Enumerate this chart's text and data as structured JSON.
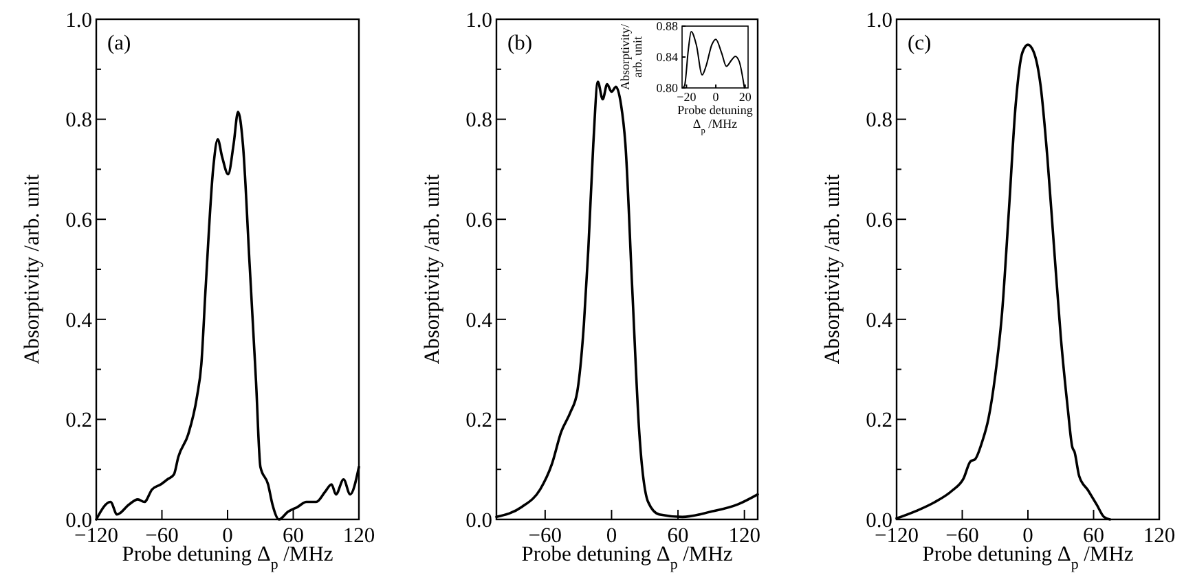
{
  "chart_data": [
    {
      "type": "line",
      "xlabel": "Probe detuning Δ$_{p}$ /MHz",
      "ylabel": "Absorptivity /arb. unit",
      "annotations": [
        "(a)"
      ],
      "xlim": [
        -120,
        120
      ],
      "ylim": [
        0,
        1
      ],
      "xticks": [
        -120,
        -60,
        0,
        60,
        120
      ],
      "yticks": [
        {
          "value": 0,
          "label": "0.0"
        },
        {
          "value": 0.1,
          "label": null
        },
        0.2,
        {
          "value": 0.3,
          "label": null
        },
        0.4,
        {
          "value": 0.5,
          "label": null
        },
        0.6,
        {
          "value": 0.7,
          "label": null
        },
        0.8,
        {
          "value": 0.9,
          "label": null
        },
        {
          "value": 1,
          "label": "1.0"
        }
      ],
      "x": [
        -120,
        -107,
        -101,
        -90,
        -82,
        -76,
        -69,
        -61,
        -55,
        -49,
        -45,
        -36,
        -28,
        -24,
        -20,
        -13,
        -9,
        -5,
        0.5,
        5.5,
        9.6,
        14,
        20,
        26,
        30,
        37,
        41,
        47,
        55,
        64,
        72,
        81,
        89,
        95,
        99,
        106,
        112,
        120
      ],
      "series": [
        {
          "color": "#000000",
          "values": [
            0.0,
            0.035,
            0.01,
            0.03,
            0.04,
            0.035,
            0.06,
            0.07,
            0.08,
            0.09,
            0.125,
            0.17,
            0.245,
            0.31,
            0.465,
            0.705,
            0.76,
            0.725,
            0.69,
            0.75,
            0.815,
            0.75,
            0.515,
            0.275,
            0.105,
            0.07,
            0.03,
            0.0,
            0.015,
            0.025,
            0.035,
            0.035,
            0.055,
            0.07,
            0.05,
            0.08,
            0.05,
            0.105
          ]
        }
      ]
    },
    {
      "type": "line",
      "xlabel": "Probe detuning Δ$_{p}$ /MHz",
      "ylabel": "Absorptivity /arb. unit",
      "annotations": [
        "(b)"
      ],
      "xlim": [
        -104,
        132
      ],
      "ylim": [
        0,
        1
      ],
      "xticks": [
        -60,
        0,
        60,
        120
      ],
      "yticks": [
        {
          "value": 0,
          "label": "0.0"
        },
        {
          "value": 0.1,
          "label": null
        },
        0.2,
        {
          "value": 0.3,
          "label": null
        },
        0.4,
        {
          "value": 0.5,
          "label": null
        },
        0.6,
        {
          "value": 0.7,
          "label": null
        },
        0.8,
        {
          "value": 0.9,
          "label": null
        },
        {
          "value": 1,
          "label": "1.0"
        }
      ],
      "x": [
        -104,
        -81,
        -64.5,
        -54,
        -45.5,
        -37,
        -31,
        -25,
        -21,
        -16.5,
        -12.4,
        -8,
        -4,
        0,
        4,
        8.5,
        12.5,
        18.6,
        25,
        33,
        43,
        64,
        89,
        114,
        132
      ],
      "series": [
        {
          "color": "#000000",
          "values": [
            0.005,
            0.025,
            0.06,
            0.11,
            0.175,
            0.215,
            0.255,
            0.39,
            0.54,
            0.75,
            0.875,
            0.84,
            0.87,
            0.855,
            0.865,
            0.83,
            0.75,
            0.465,
            0.175,
            0.035,
            0.01,
            0.005,
            0.015,
            0.03,
            0.05
          ]
        }
      ]
    },
    {
      "type": "line",
      "xlabel": "Probe detuning Δ$_{p}$ /MHz",
      "ylabel": "Absorptivity/ arb. unit",
      "xlim": [
        -23,
        22
      ],
      "ylim": [
        0.8,
        0.88
      ],
      "xticks": [
        -20,
        0,
        20
      ],
      "yticks": [
        {
          "value": 0.8,
          "label": "0.80"
        },
        {
          "value": 0.84,
          "label": "0.84"
        },
        {
          "value": 0.88,
          "label": "0.88"
        }
      ],
      "x": [
        -22.7,
        -21.3,
        -18.7,
        -16.8,
        -13.3,
        -9.3,
        -6.7,
        -2.7,
        0,
        4,
        7.2,
        10.7,
        13.3,
        16,
        19.5
      ],
      "series": [
        {
          "color": "#000000",
          "values": [
            0.8,
            0.803,
            0.85,
            0.873,
            0.856,
            0.817,
            0.828,
            0.856,
            0.863,
            0.845,
            0.828,
            0.836,
            0.841,
            0.834,
            0.8
          ]
        }
      ]
    },
    {
      "type": "line",
      "xlabel": "Probe detuning Δ$_{p}$ /MHz",
      "ylabel": "Absorptivity /arb. unit",
      "annotations": [
        "(c)"
      ],
      "xlim": [
        -120,
        120
      ],
      "ylim": [
        0,
        1
      ],
      "xticks": [
        -120,
        -60,
        0,
        60,
        120
      ],
      "yticks": [
        {
          "value": 0,
          "label": "0.0"
        },
        {
          "value": 0.1,
          "label": null
        },
        0.2,
        {
          "value": 0.3,
          "label": null
        },
        0.4,
        {
          "value": 0.5,
          "label": null
        },
        0.6,
        {
          "value": 0.7,
          "label": null
        },
        0.8,
        {
          "value": 0.9,
          "label": null
        },
        {
          "value": 1,
          "label": "1.0"
        }
      ],
      "x": [
        -120,
        -102,
        -85.6,
        -69,
        -58.8,
        -52.5,
        -48.4,
        -42,
        -36,
        -29.8,
        -23.6,
        -17.4,
        -11.2,
        -5,
        0,
        5.4,
        11.6,
        17.8,
        24,
        30,
        36.4,
        40.5,
        42.6,
        46.8,
        55,
        63,
        69.5,
        75
      ],
      "series": [
        {
          "color": "#000000",
          "values": [
            0.002,
            0.017,
            0.034,
            0.058,
            0.082,
            0.116,
            0.12,
            0.154,
            0.202,
            0.289,
            0.414,
            0.617,
            0.829,
            0.934,
            0.949,
            0.934,
            0.867,
            0.723,
            0.54,
            0.366,
            0.222,
            0.145,
            0.135,
            0.087,
            0.058,
            0.029,
            0.005,
            0.0
          ]
        }
      ]
    }
  ]
}
